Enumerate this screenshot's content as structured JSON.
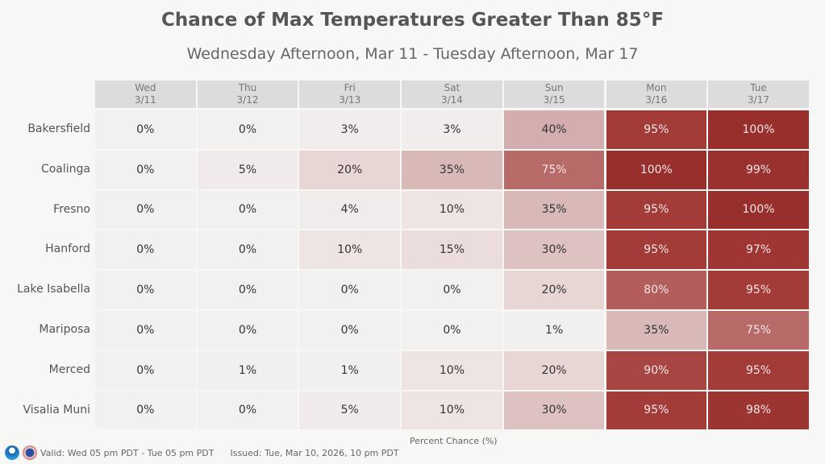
{
  "chart_data": {
    "type": "heatmap",
    "title": "Chance of Max Temperatures Greater Than 85°F",
    "subtitle": "Wednesday Afternoon, Mar 11 - Tuesday Afternoon, Mar 17",
    "columns": [
      {
        "day": "Wed",
        "date": "3/11"
      },
      {
        "day": "Thu",
        "date": "3/12"
      },
      {
        "day": "Fri",
        "date": "3/13"
      },
      {
        "day": "Sat",
        "date": "3/14"
      },
      {
        "day": "Sun",
        "date": "3/15"
      },
      {
        "day": "Mon",
        "date": "3/16"
      },
      {
        "day": "Tue",
        "date": "3/17"
      }
    ],
    "rows": [
      "Bakersfield",
      "Coalinga",
      "Fresno",
      "Hanford",
      "Lake Isabella",
      "Mariposa",
      "Merced",
      "Visalia Muni"
    ],
    "values": [
      [
        0,
        0,
        3,
        3,
        40,
        95,
        100
      ],
      [
        0,
        5,
        20,
        35,
        75,
        100,
        99
      ],
      [
        0,
        0,
        4,
        10,
        35,
        95,
        100
      ],
      [
        0,
        0,
        10,
        15,
        30,
        95,
        97
      ],
      [
        0,
        0,
        0,
        0,
        20,
        80,
        95
      ],
      [
        0,
        0,
        0,
        0,
        1,
        35,
        75
      ],
      [
        0,
        1,
        1,
        10,
        20,
        90,
        95
      ],
      [
        0,
        0,
        5,
        10,
        30,
        95,
        98
      ]
    ],
    "value_suffix": "%",
    "legend_label": "Percent Chance (%)",
    "color_low": "#f2f1f0",
    "color_high": "#982f2d"
  },
  "footer": {
    "valid": "Valid: Wed 05 pm PDT - Tue 05 pm PDT",
    "issued": "Issued: Tue, Mar 10, 2026, 10 pm PDT"
  }
}
